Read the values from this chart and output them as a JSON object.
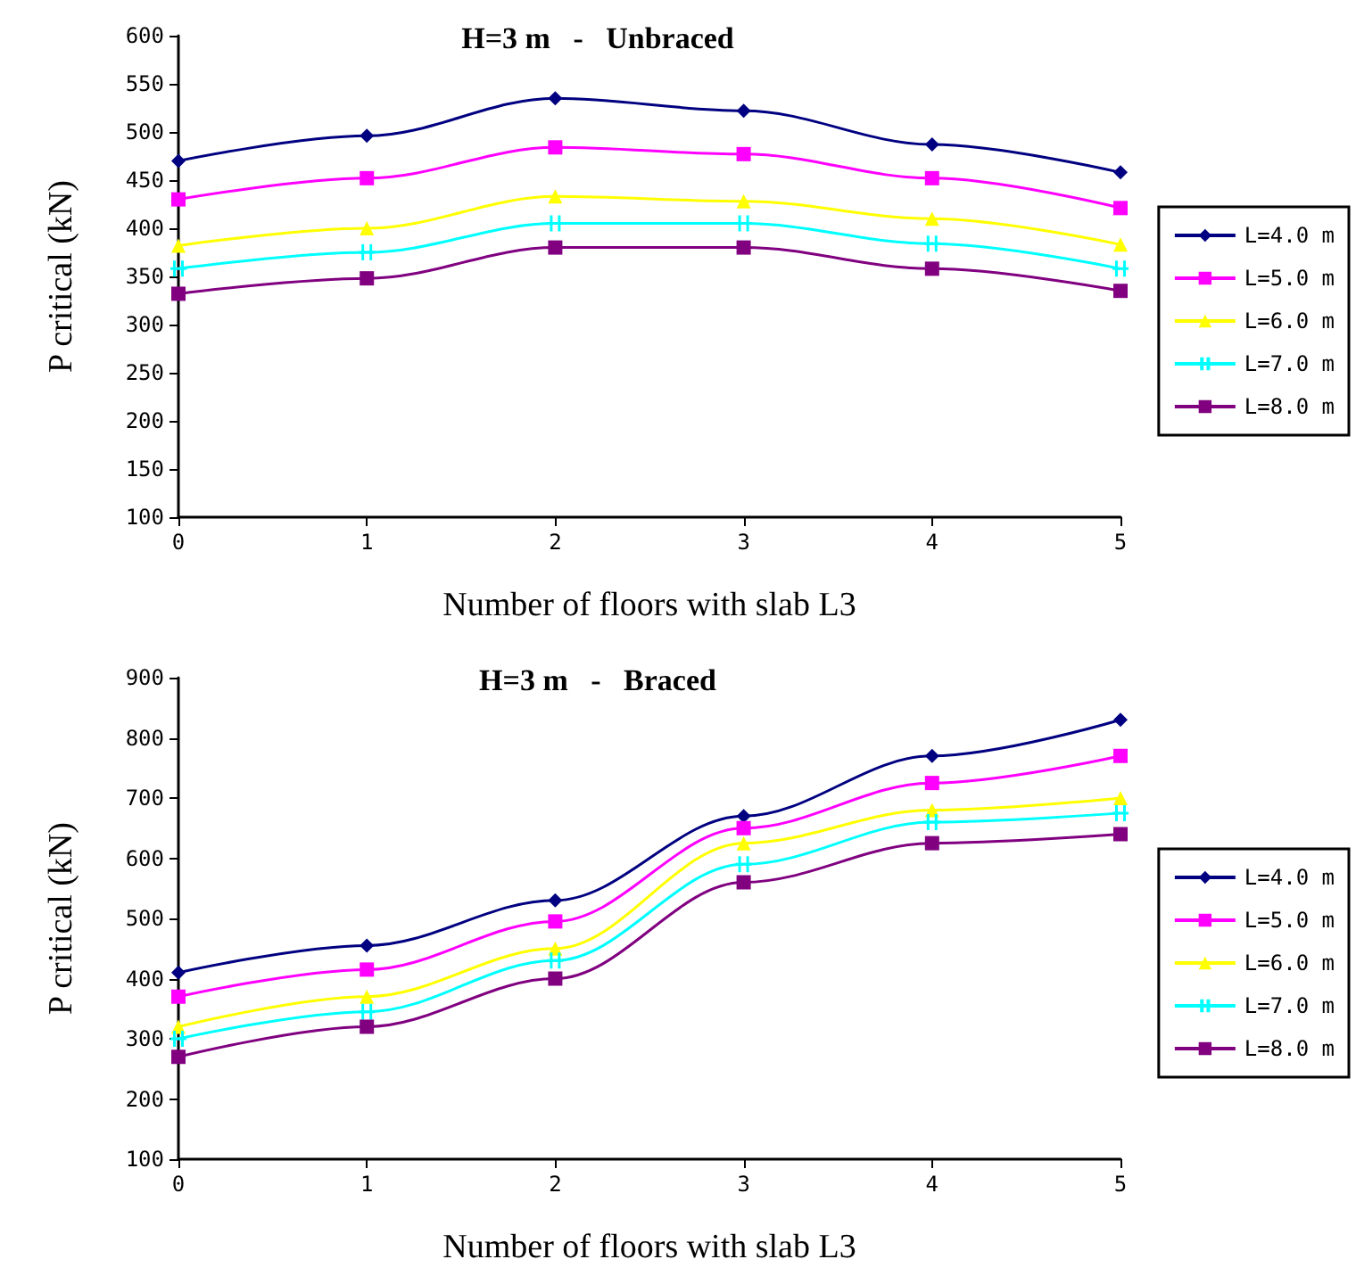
{
  "chart_data": [
    {
      "type": "line",
      "title": "H=3 m   -   Unbraced",
      "xlabel": "Number of floors with slab L3",
      "ylabel": "P critical (kN)",
      "categories": [
        "0",
        "1",
        "2",
        "3",
        "4",
        "5"
      ],
      "ylim": [
        100,
        600
      ],
      "yticks": [
        100,
        150,
        200,
        250,
        300,
        350,
        400,
        450,
        500,
        550,
        600
      ],
      "legend": "right",
      "grid": false,
      "series": [
        {
          "name": "L=4.0 m",
          "color": "#000080",
          "marker": "diamond",
          "values": [
            470,
            496,
            535,
            522,
            487,
            458
          ]
        },
        {
          "name": "L=5.0 m",
          "color": "#ff00ff",
          "marker": "square",
          "values": [
            430,
            452,
            484,
            477,
            452,
            421
          ]
        },
        {
          "name": "L=6.0 m",
          "color": "#ffff00",
          "marker": "triangle",
          "values": [
            382,
            400,
            433,
            428,
            410,
            383
          ]
        },
        {
          "name": "L=7.0 m",
          "color": "#00ffff",
          "marker": "cross",
          "values": [
            358,
            375,
            405,
            405,
            384,
            358
          ]
        },
        {
          "name": "L=8.0 m",
          "color": "#800080",
          "marker": "square",
          "values": [
            332,
            348,
            380,
            380,
            358,
            335
          ]
        }
      ]
    },
    {
      "type": "line",
      "title": "H=3 m   -   Braced",
      "xlabel": "Number of floors with slab L3",
      "ylabel": "P critical (kN)",
      "categories": [
        "0",
        "1",
        "2",
        "3",
        "4",
        "5"
      ],
      "ylim": [
        100,
        900
      ],
      "yticks": [
        100,
        200,
        300,
        400,
        500,
        600,
        700,
        800,
        900
      ],
      "legend": "right",
      "grid": false,
      "series": [
        {
          "name": "L=4.0 m",
          "color": "#000080",
          "marker": "diamond",
          "values": [
            410,
            455,
            530,
            670,
            770,
            830
          ]
        },
        {
          "name": "L=5.0 m",
          "color": "#ff00ff",
          "marker": "square",
          "values": [
            370,
            415,
            495,
            650,
            725,
            770
          ]
        },
        {
          "name": "L=6.0 m",
          "color": "#ffff00",
          "marker": "triangle",
          "values": [
            320,
            370,
            450,
            625,
            680,
            700
          ]
        },
        {
          "name": "L=7.0 m",
          "color": "#00ffff",
          "marker": "cross",
          "values": [
            300,
            345,
            430,
            590,
            660,
            675
          ]
        },
        {
          "name": "L=8.0 m",
          "color": "#800080",
          "marker": "square",
          "values": [
            270,
            320,
            400,
            560,
            625,
            640
          ]
        }
      ]
    }
  ]
}
